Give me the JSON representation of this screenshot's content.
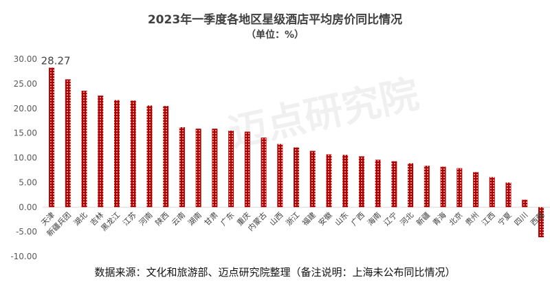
{
  "chart_data": {
    "type": "bar",
    "title": "2023年一季度各地区星级酒店平均房价同比情况",
    "subtitle": "（单位：%）",
    "xlabel": "",
    "ylabel": "",
    "ylim": [
      -10,
      30
    ],
    "yticks": [
      "30.00",
      "25.00",
      "20.00",
      "15.00",
      "10.00",
      "5.00",
      "0.00",
      "-5.00",
      "-10.00"
    ],
    "ytick_values": [
      30,
      25,
      20,
      15,
      10,
      5,
      0,
      -5,
      -10
    ],
    "grid": false,
    "categories": [
      "天津",
      "新疆兵团",
      "湖北",
      "吉林",
      "黑龙江",
      "江苏",
      "河南",
      "陕西",
      "云南",
      "湖南",
      "甘肃",
      "广东",
      "重庆",
      "内蒙古",
      "山西",
      "浙江",
      "福建",
      "安徽",
      "山东",
      "广西",
      "海南",
      "辽宁",
      "河北",
      "新疆",
      "青海",
      "北京",
      "贵州",
      "江西",
      "宁夏",
      "四川",
      "西藏"
    ],
    "values": [
      28.27,
      25.9,
      23.6,
      22.6,
      21.7,
      21.6,
      20.6,
      20.5,
      16.2,
      15.9,
      15.9,
      15.5,
      15.3,
      14.1,
      12.8,
      12.1,
      11.4,
      10.7,
      10.6,
      10.3,
      9.6,
      9.3,
      8.9,
      8.4,
      8.2,
      7.9,
      7.1,
      6.1,
      5.0,
      1.5,
      -6.1
    ],
    "data_labels": [
      {
        "index": 0,
        "text": "28.27"
      }
    ],
    "bar_color": "#b00000",
    "source_note": "数据来源：文化和旅游部、迈点研究院整理（备注说明：上海未公布同比情况）"
  },
  "watermark": "迈点研究院"
}
